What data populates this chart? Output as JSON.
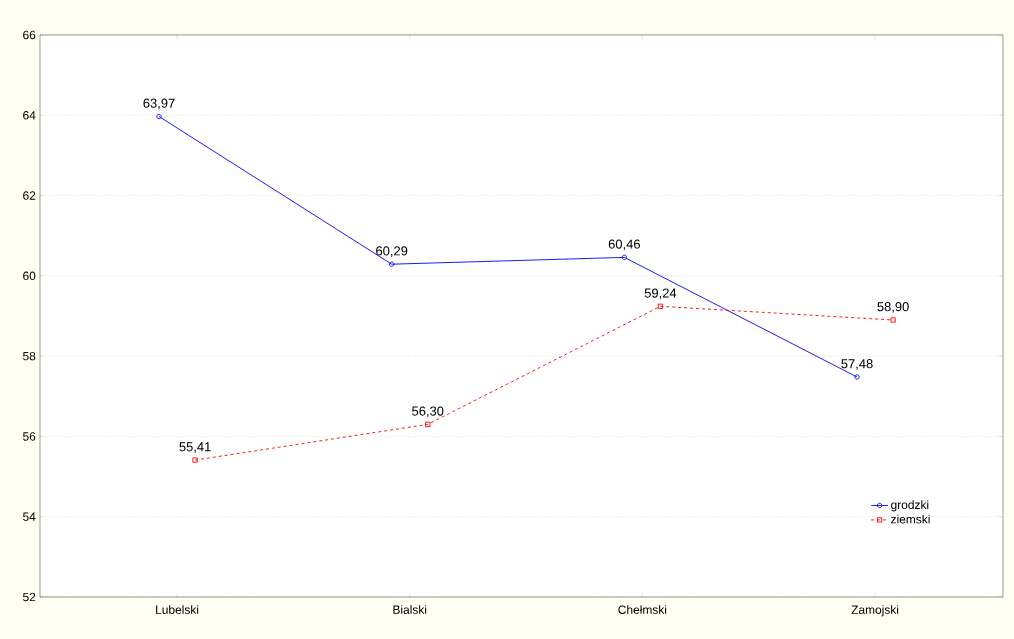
{
  "chart_data": {
    "type": "line",
    "categories": [
      "Lubelski",
      "Bialski",
      "Chełmski",
      "Zamojski"
    ],
    "series": [
      {
        "name": "grodzki",
        "color": "#0000ff",
        "values": [
          63.97,
          60.29,
          60.46,
          57.48
        ],
        "value_labels": [
          "63,97",
          "60,29",
          "60,46",
          "57,48"
        ],
        "marker": "circle",
        "line_style": "solid"
      },
      {
        "name": "ziemski",
        "color": "#ff0000",
        "values": [
          55.41,
          56.3,
          59.24,
          58.9
        ],
        "value_labels": [
          "55,41",
          "56,30",
          "59,24",
          "58,90"
        ],
        "marker": "square",
        "line_style": "dashed"
      }
    ],
    "ylim": [
      52,
      66
    ],
    "yticks": [
      52,
      54,
      56,
      58,
      60,
      62,
      64,
      66
    ],
    "grid": "y",
    "legend": "bottom right"
  }
}
